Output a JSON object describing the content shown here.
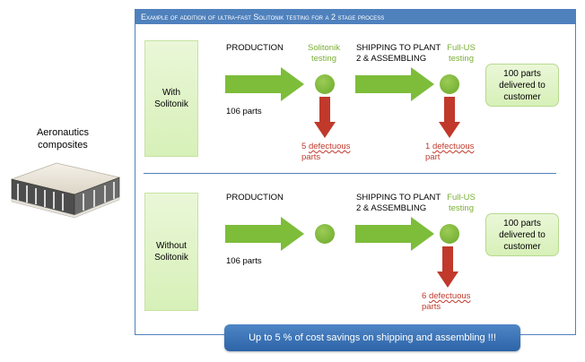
{
  "left": {
    "title_line1": "Aeronautics",
    "title_line2": "composites"
  },
  "panel": {
    "title": "Example of addition of ultra-fast Solitonik testing for a 2 stage process"
  },
  "row_with": {
    "stage_line1": "With",
    "stage_line2": "Solitonik",
    "production": "PRODUCTION",
    "parts": "106 parts",
    "test1_line1": "Solitonik",
    "test1_line2": "testing",
    "shipping_line1": "SHIPPING TO PLANT",
    "shipping_line2": "2 & ASSEMBLING",
    "test2_line1": "Full-US",
    "test2_line2": "testing",
    "defect1_num": "5",
    "defect1_word": "defectuous",
    "defect1_line2": "parts",
    "defect2_num": "1",
    "defect2_word": "defectuous",
    "defect2_line2": "part",
    "result_line1": "100 parts",
    "result_line2": "delivered to",
    "result_line3": "customer"
  },
  "row_without": {
    "stage_line1": "Without",
    "stage_line2": "Solitonik",
    "production": "PRODUCTION",
    "parts": "106 parts",
    "shipping_line1": "SHIPPING TO PLANT",
    "shipping_line2": "2 & ASSEMBLING",
    "test2_line1": "Full-US",
    "test2_line2": "testing",
    "defect_num": "6",
    "defect_word": "defectuous",
    "defect_line2": "parts",
    "result_line1": "100 parts",
    "result_line2": "delivered to",
    "result_line3": "customer"
  },
  "banner": {
    "text": "Up to 5 % of cost savings on shipping and assembling !!!"
  },
  "colors": {
    "accent_blue": "#4f81bd",
    "arrow_green": "#7dbd3a",
    "arrow_red": "#c0392b",
    "text_green": "#7aaf35"
  }
}
